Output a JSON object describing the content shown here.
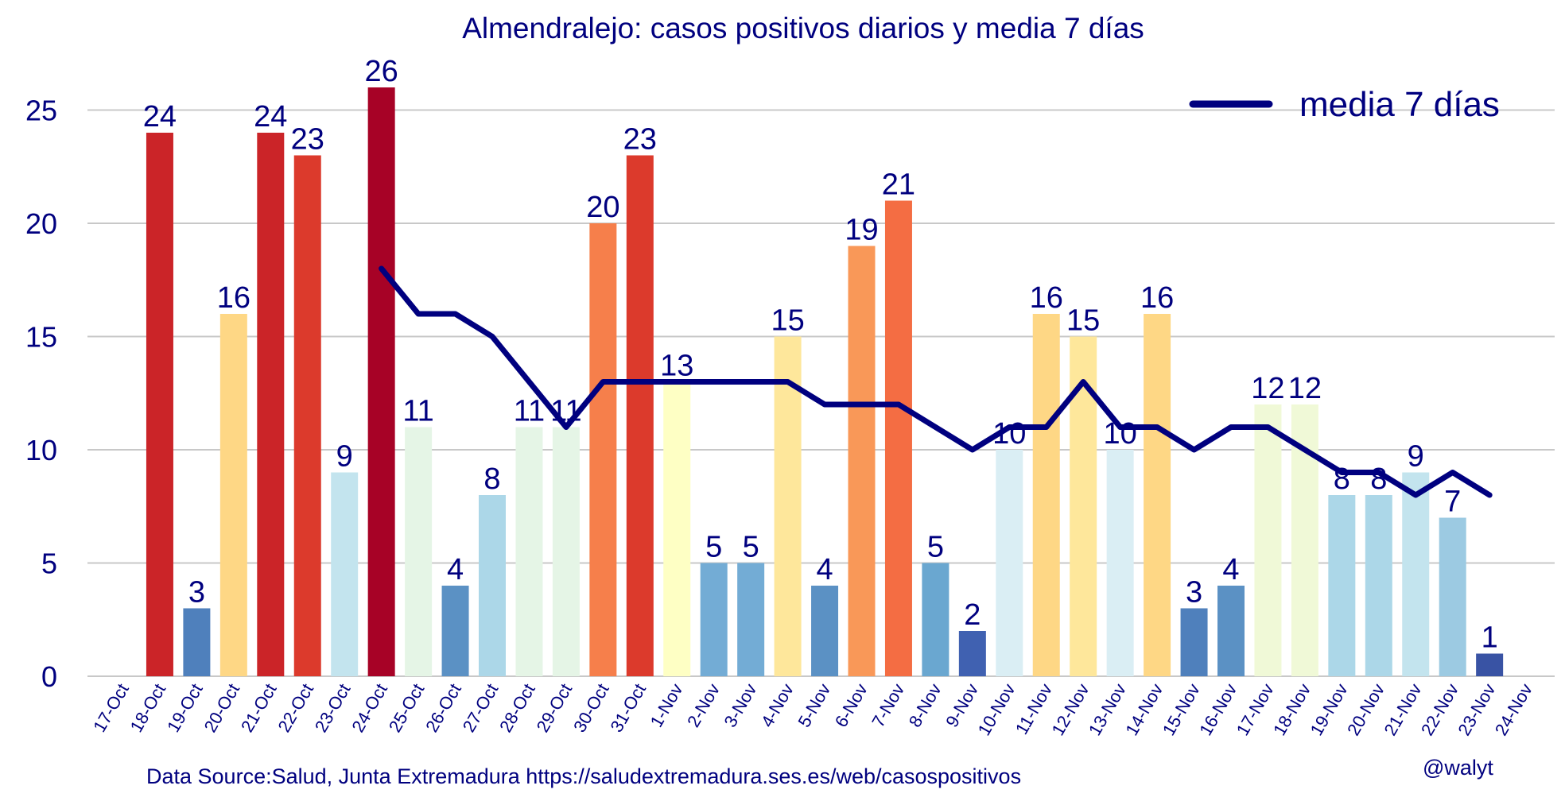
{
  "chart_data": {
    "type": "bar",
    "title": "Almendralejo: casos positivos diarios y media 7 días",
    "categories": [
      "17-Oct",
      "18-Oct",
      "19-Oct",
      "20-Oct",
      "21-Oct",
      "22-Oct",
      "23-Oct",
      "24-Oct",
      "25-Oct",
      "26-Oct",
      "27-Oct",
      "28-Oct",
      "29-Oct",
      "30-Oct",
      "31-Oct",
      "1-Nov",
      "2-Nov",
      "3-Nov",
      "4-Nov",
      "5-Nov",
      "6-Nov",
      "7-Nov",
      "8-Nov",
      "9-Nov",
      "10-Nov",
      "11-Nov",
      "12-Nov",
      "13-Nov",
      "14-Nov",
      "15-Nov",
      "16-Nov",
      "17-Nov",
      "18-Nov",
      "19-Nov",
      "20-Nov",
      "21-Nov",
      "22-Nov",
      "23-Nov",
      "24-Nov"
    ],
    "values": [
      null,
      24,
      3,
      16,
      24,
      23,
      9,
      26,
      11,
      4,
      8,
      11,
      11,
      20,
      23,
      13,
      5,
      5,
      15,
      4,
      19,
      21,
      5,
      2,
      10,
      16,
      15,
      10,
      16,
      3,
      4,
      12,
      12,
      8,
      8,
      9,
      7,
      1,
      null
    ],
    "bar_colors": [
      "#ffffff",
      "#cb2428",
      "#4f80bc",
      "#fed785",
      "#cb2428",
      "#dc3a2c",
      "#c3e4ee",
      "#a70226",
      "#e5f5e6",
      "#5b91c4",
      "#acd7e8",
      "#e5f5e6",
      "#e5f5e6",
      "#f67f4b",
      "#dc3a2c",
      "#feffc4",
      "#73acd5",
      "#73acd5",
      "#fee79b",
      "#5b91c4",
      "#f99858",
      "#f46d43",
      "#6aa7d0",
      "#4061b1",
      "#daeef4",
      "#fed785",
      "#fee79b",
      "#daeef4",
      "#fed785",
      "#4f80bc",
      "#5b91c4",
      "#f0f9d7",
      "#f0f9d7",
      "#acd7e8",
      "#acd7e8",
      "#c3e4ee",
      "#9ccae2",
      "#3953a4",
      "#ffffff"
    ],
    "series": [
      {
        "name": "media 7 días",
        "type": "line",
        "color": "#00007f",
        "values": [
          null,
          null,
          null,
          null,
          null,
          null,
          null,
          18,
          16,
          16,
          15,
          13,
          11,
          13,
          13,
          13,
          13,
          13,
          13,
          12,
          12,
          12,
          11,
          10,
          11,
          11,
          13,
          11,
          11,
          10,
          11,
          11,
          10,
          9,
          9,
          8,
          9,
          8,
          null
        ]
      }
    ],
    "ylim": [
      0,
      26.5
    ],
    "yticks": [
      0,
      5,
      10,
      15,
      20,
      25
    ],
    "grid": true,
    "legend": "top-right",
    "xlabel": "",
    "ylabel": ""
  },
  "footer": {
    "source": "Data Source:Salud, Junta Extremadura https://saludextremadura.ses.es/web/casospositivos",
    "credit": "@walyt"
  }
}
